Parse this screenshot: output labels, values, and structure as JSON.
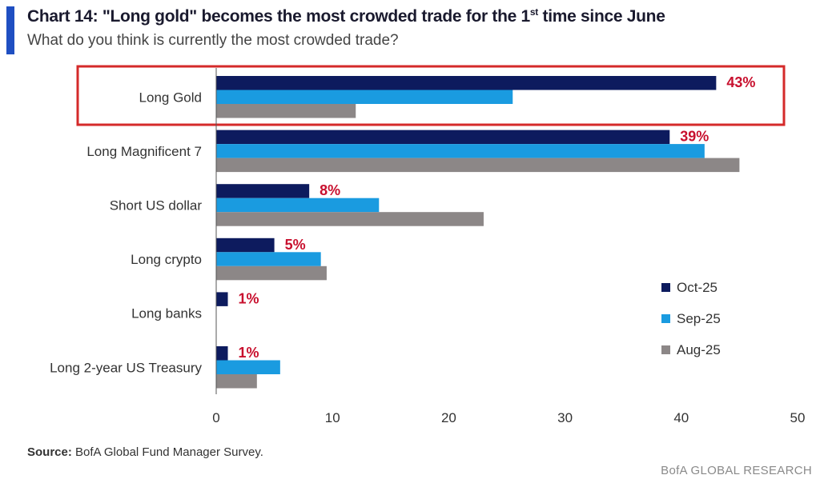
{
  "header": {
    "title_pre": "Chart 14: \"Long gold\" becomes the most crowded trade for the 1",
    "title_sup": "st",
    "title_post": " time since June",
    "subtitle": "What do you think is currently the most crowded trade?"
  },
  "footer": {
    "source_label": "Source:",
    "source_text": " BofA Global Fund Manager Survey.",
    "brand": "BofA GLOBAL RESEARCH"
  },
  "colors": {
    "accent": "#1f4fc2",
    "oct": "#0d1b5e",
    "sep": "#1a9be0",
    "aug": "#8c8787",
    "highlight": "#d42a2a",
    "label": "#c8102e"
  },
  "chart_data": {
    "type": "bar",
    "orientation": "horizontal",
    "categories": [
      "Long Gold",
      "Long Magnificent 7",
      "Short US dollar",
      "Long crypto",
      "Long banks",
      "Long 2-year US Treasury"
    ],
    "series": [
      {
        "name": "Oct-25",
        "values": [
          43,
          39,
          8,
          5,
          1,
          1
        ]
      },
      {
        "name": "Sep-25",
        "values": [
          25.5,
          42,
          14,
          9,
          0,
          5.5
        ]
      },
      {
        "name": "Aug-25",
        "values": [
          12,
          45,
          23,
          9.5,
          0,
          3.5
        ]
      }
    ],
    "data_labels": [
      "43%",
      "39%",
      "8%",
      "5%",
      "1%",
      "1%"
    ],
    "xlim": [
      0,
      50
    ],
    "xticks": [
      0,
      10,
      20,
      30,
      40,
      50
    ],
    "legend": "right",
    "highlighted_category": "Long Gold"
  }
}
